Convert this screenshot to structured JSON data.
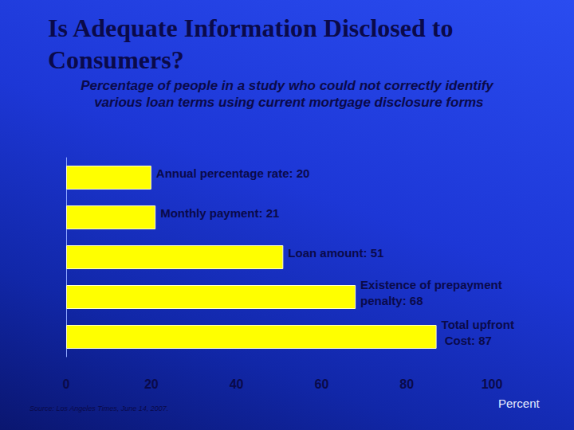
{
  "chart_data": {
    "type": "bar",
    "title": "Is Adequate Information Disclosed to Consumers?",
    "subtitle": "Percentage of people in a study who could not correctly identify various loan terms using current mortgage disclosure forms",
    "source": "Source: Los Angeles Times, June 14, 2007.",
    "x_label": "Percent",
    "categories": [
      "Annual percentage rate",
      "Monthly payment",
      "Loan amount",
      "Existence of prepayment penalty",
      "Total upfront Cost"
    ],
    "values": [
      20,
      21,
      51,
      68,
      87
    ],
    "value_labels": [
      "Annual percentage rate: 20",
      "Monthly payment: 21",
      "Loan amount: 51",
      "Existence of prepayment penalty: 68",
      "Total upfront Cost: 87"
    ],
    "color": "#ffff00",
    "orientation": "horizontal",
    "data_labels": true,
    "xlim": [
      0,
      100
    ],
    "xticks": [
      0,
      20,
      40,
      60,
      80,
      100
    ],
    "grid": false,
    "tick_labels": "x"
  }
}
